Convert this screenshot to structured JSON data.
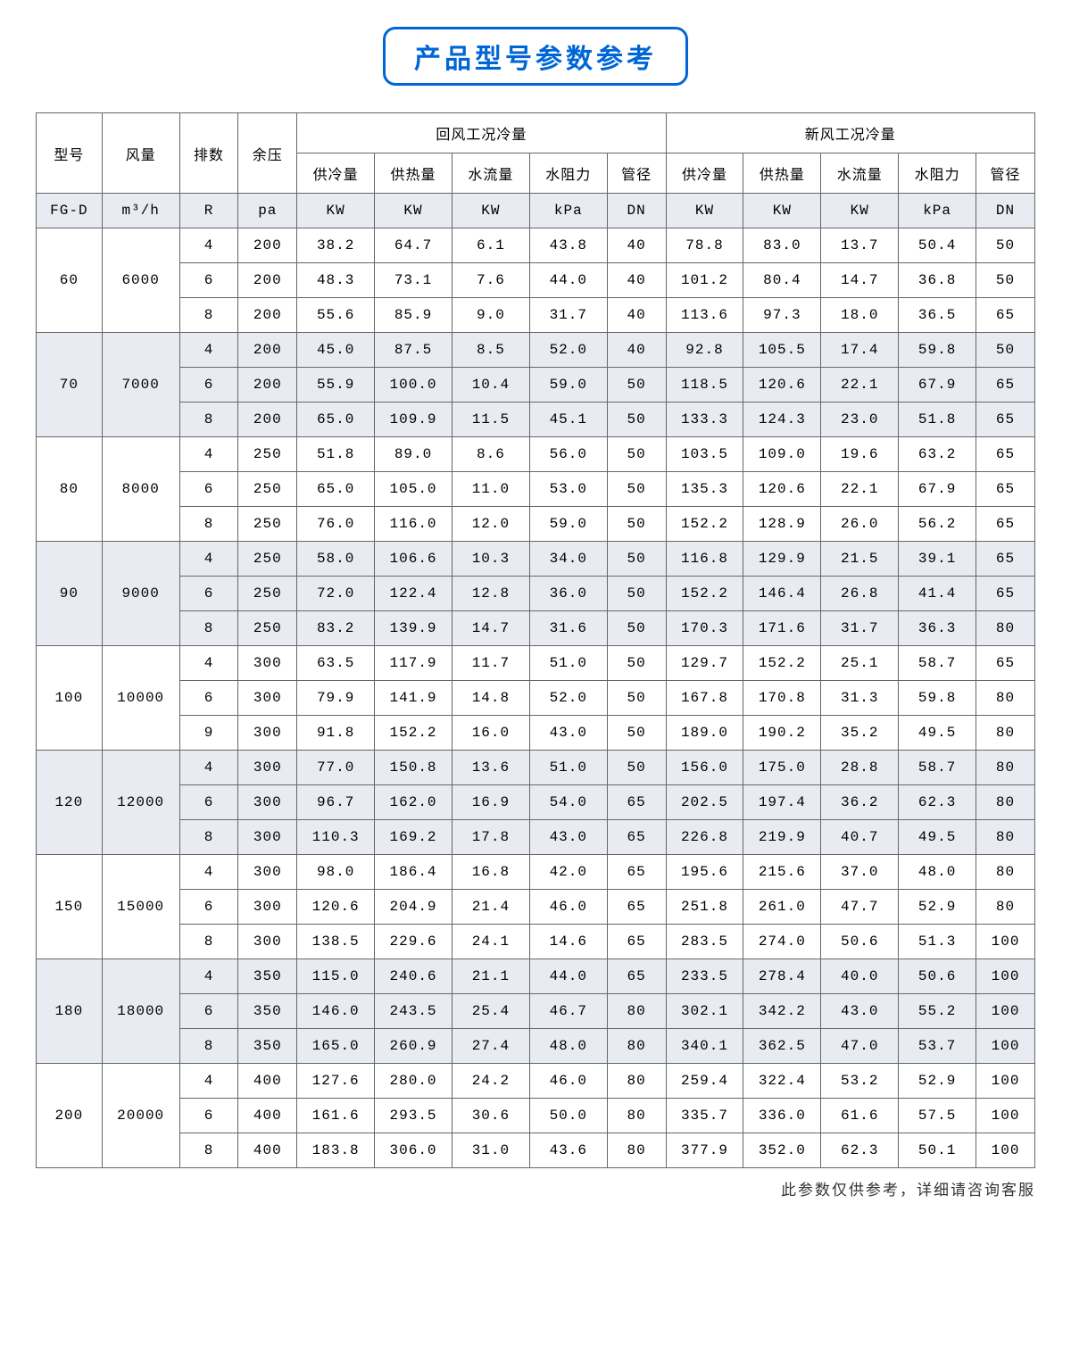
{
  "title": "产品型号参数参考",
  "footnote": "此参数仅供参考，详细请咨询客服",
  "headers": {
    "model": "型号",
    "airflow": "风量",
    "rows": "排数",
    "pressure": "余压",
    "group_return": "回风工况冷量",
    "group_fresh": "新风工况冷量",
    "sub": [
      "供冷量",
      "供热量",
      "水流量",
      "水阻力",
      "管径"
    ]
  },
  "units": {
    "model": "FG-D",
    "airflow": "m³/h",
    "rows": "R",
    "pressure": "pa",
    "sub": [
      "KW",
      "KW",
      "KW",
      "kPa",
      "DN"
    ]
  },
  "groups": [
    {
      "model": "60",
      "airflow": "6000",
      "rows": [
        {
          "r": "4",
          "press": "200",
          "ret": [
            "38.2",
            "64.7",
            "6.1",
            "43.8",
            "40"
          ],
          "fre": [
            "78.8",
            "83.0",
            "13.7",
            "50.4",
            "50"
          ]
        },
        {
          "r": "6",
          "press": "200",
          "ret": [
            "48.3",
            "73.1",
            "7.6",
            "44.0",
            "40"
          ],
          "fre": [
            "101.2",
            "80.4",
            "14.7",
            "36.8",
            "50"
          ]
        },
        {
          "r": "8",
          "press": "200",
          "ret": [
            "55.6",
            "85.9",
            "9.0",
            "31.7",
            "40"
          ],
          "fre": [
            "113.6",
            "97.3",
            "18.0",
            "36.5",
            "65"
          ]
        }
      ]
    },
    {
      "model": "70",
      "airflow": "7000",
      "rows": [
        {
          "r": "4",
          "press": "200",
          "ret": [
            "45.0",
            "87.5",
            "8.5",
            "52.0",
            "40"
          ],
          "fre": [
            "92.8",
            "105.5",
            "17.4",
            "59.8",
            "50"
          ]
        },
        {
          "r": "6",
          "press": "200",
          "ret": [
            "55.9",
            "100.0",
            "10.4",
            "59.0",
            "50"
          ],
          "fre": [
            "118.5",
            "120.6",
            "22.1",
            "67.9",
            "65"
          ]
        },
        {
          "r": "8",
          "press": "200",
          "ret": [
            "65.0",
            "109.9",
            "11.5",
            "45.1",
            "50"
          ],
          "fre": [
            "133.3",
            "124.3",
            "23.0",
            "51.8",
            "65"
          ]
        }
      ]
    },
    {
      "model": "80",
      "airflow": "8000",
      "rows": [
        {
          "r": "4",
          "press": "250",
          "ret": [
            "51.8",
            "89.0",
            "8.6",
            "56.0",
            "50"
          ],
          "fre": [
            "103.5",
            "109.0",
            "19.6",
            "63.2",
            "65"
          ]
        },
        {
          "r": "6",
          "press": "250",
          "ret": [
            "65.0",
            "105.0",
            "11.0",
            "53.0",
            "50"
          ],
          "fre": [
            "135.3",
            "120.6",
            "22.1",
            "67.9",
            "65"
          ]
        },
        {
          "r": "8",
          "press": "250",
          "ret": [
            "76.0",
            "116.0",
            "12.0",
            "59.0",
            "50"
          ],
          "fre": [
            "152.2",
            "128.9",
            "26.0",
            "56.2",
            "65"
          ]
        }
      ]
    },
    {
      "model": "90",
      "airflow": "9000",
      "rows": [
        {
          "r": "4",
          "press": "250",
          "ret": [
            "58.0",
            "106.6",
            "10.3",
            "34.0",
            "50"
          ],
          "fre": [
            "116.8",
            "129.9",
            "21.5",
            "39.1",
            "65"
          ]
        },
        {
          "r": "6",
          "press": "250",
          "ret": [
            "72.0",
            "122.4",
            "12.8",
            "36.0",
            "50"
          ],
          "fre": [
            "152.2",
            "146.4",
            "26.8",
            "41.4",
            "65"
          ]
        },
        {
          "r": "8",
          "press": "250",
          "ret": [
            "83.2",
            "139.9",
            "14.7",
            "31.6",
            "50"
          ],
          "fre": [
            "170.3",
            "171.6",
            "31.7",
            "36.3",
            "80"
          ]
        }
      ]
    },
    {
      "model": "100",
      "airflow": "10000",
      "rows": [
        {
          "r": "4",
          "press": "300",
          "ret": [
            "63.5",
            "117.9",
            "11.7",
            "51.0",
            "50"
          ],
          "fre": [
            "129.7",
            "152.2",
            "25.1",
            "58.7",
            "65"
          ]
        },
        {
          "r": "6",
          "press": "300",
          "ret": [
            "79.9",
            "141.9",
            "14.8",
            "52.0",
            "50"
          ],
          "fre": [
            "167.8",
            "170.8",
            "31.3",
            "59.8",
            "80"
          ]
        },
        {
          "r": "9",
          "press": "300",
          "ret": [
            "91.8",
            "152.2",
            "16.0",
            "43.0",
            "50"
          ],
          "fre": [
            "189.0",
            "190.2",
            "35.2",
            "49.5",
            "80"
          ]
        }
      ]
    },
    {
      "model": "120",
      "airflow": "12000",
      "rows": [
        {
          "r": "4",
          "press": "300",
          "ret": [
            "77.0",
            "150.8",
            "13.6",
            "51.0",
            "50"
          ],
          "fre": [
            "156.0",
            "175.0",
            "28.8",
            "58.7",
            "80"
          ]
        },
        {
          "r": "6",
          "press": "300",
          "ret": [
            "96.7",
            "162.0",
            "16.9",
            "54.0",
            "65"
          ],
          "fre": [
            "202.5",
            "197.4",
            "36.2",
            "62.3",
            "80"
          ]
        },
        {
          "r": "8",
          "press": "300",
          "ret": [
            "110.3",
            "169.2",
            "17.8",
            "43.0",
            "65"
          ],
          "fre": [
            "226.8",
            "219.9",
            "40.7",
            "49.5",
            "80"
          ]
        }
      ]
    },
    {
      "model": "150",
      "airflow": "15000",
      "rows": [
        {
          "r": "4",
          "press": "300",
          "ret": [
            "98.0",
            "186.4",
            "16.8",
            "42.0",
            "65"
          ],
          "fre": [
            "195.6",
            "215.6",
            "37.0",
            "48.0",
            "80"
          ]
        },
        {
          "r": "6",
          "press": "300",
          "ret": [
            "120.6",
            "204.9",
            "21.4",
            "46.0",
            "65"
          ],
          "fre": [
            "251.8",
            "261.0",
            "47.7",
            "52.9",
            "80"
          ]
        },
        {
          "r": "8",
          "press": "300",
          "ret": [
            "138.5",
            "229.6",
            "24.1",
            "14.6",
            "65"
          ],
          "fre": [
            "283.5",
            "274.0",
            "50.6",
            "51.3",
            "100"
          ]
        }
      ]
    },
    {
      "model": "180",
      "airflow": "18000",
      "rows": [
        {
          "r": "4",
          "press": "350",
          "ret": [
            "115.0",
            "240.6",
            "21.1",
            "44.0",
            "65"
          ],
          "fre": [
            "233.5",
            "278.4",
            "40.0",
            "50.6",
            "100"
          ]
        },
        {
          "r": "6",
          "press": "350",
          "ret": [
            "146.0",
            "243.5",
            "25.4",
            "46.7",
            "80"
          ],
          "fre": [
            "302.1",
            "342.2",
            "43.0",
            "55.2",
            "100"
          ]
        },
        {
          "r": "8",
          "press": "350",
          "ret": [
            "165.0",
            "260.9",
            "27.4",
            "48.0",
            "80"
          ],
          "fre": [
            "340.1",
            "362.5",
            "47.0",
            "53.7",
            "100"
          ]
        }
      ]
    },
    {
      "model": "200",
      "airflow": "20000",
      "rows": [
        {
          "r": "4",
          "press": "400",
          "ret": [
            "127.6",
            "280.0",
            "24.2",
            "46.0",
            "80"
          ],
          "fre": [
            "259.4",
            "322.4",
            "53.2",
            "52.9",
            "100"
          ]
        },
        {
          "r": "6",
          "press": "400",
          "ret": [
            "161.6",
            "293.5",
            "30.6",
            "50.0",
            "80"
          ],
          "fre": [
            "335.7",
            "336.0",
            "61.6",
            "57.5",
            "100"
          ]
        },
        {
          "r": "8",
          "press": "400",
          "ret": [
            "183.8",
            "306.0",
            "31.0",
            "43.6",
            "80"
          ],
          "fre": [
            "377.9",
            "352.0",
            "62.3",
            "50.1",
            "100"
          ]
        }
      ]
    }
  ]
}
